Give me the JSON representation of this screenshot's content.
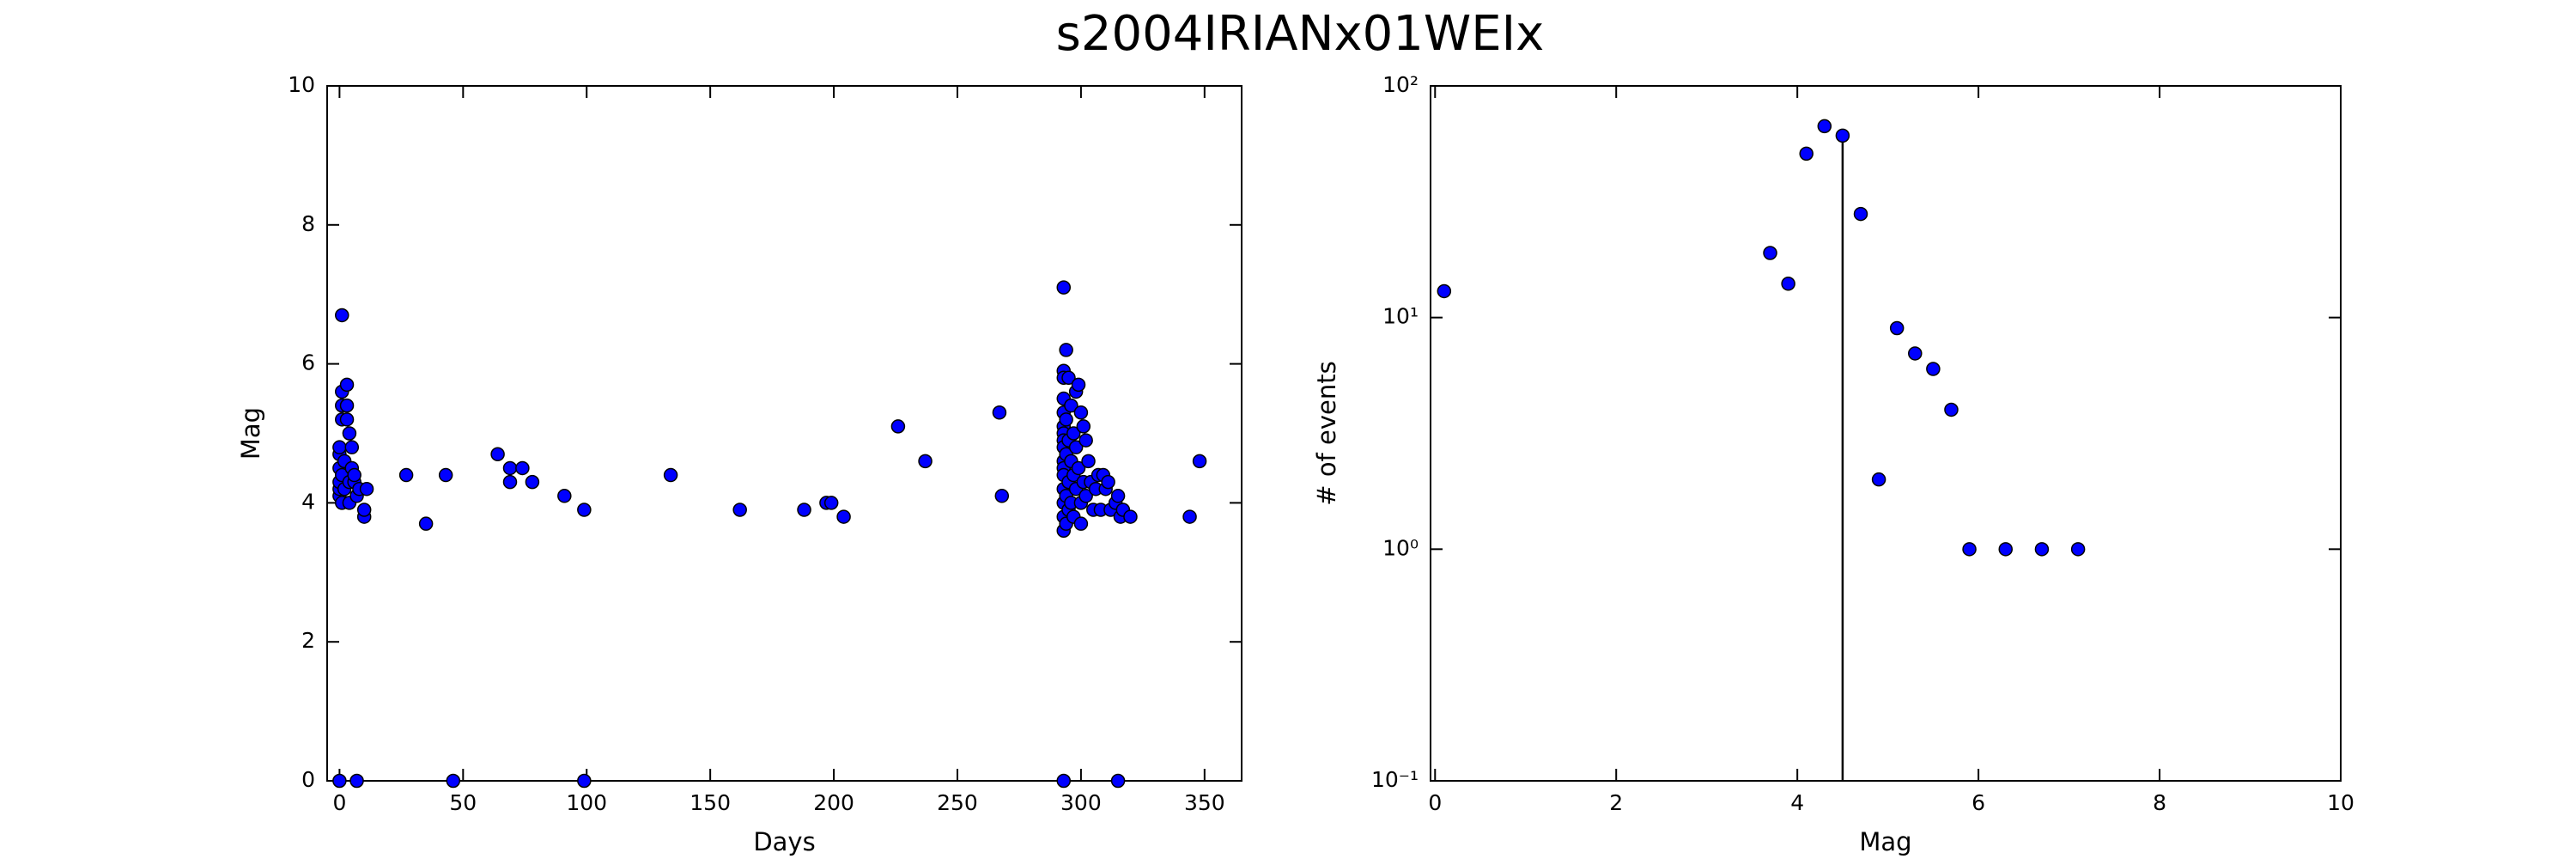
{
  "title": "s2004IRIANx01WEIx",
  "chart_data": [
    {
      "type": "scatter",
      "xlabel": "Days",
      "ylabel": "Mag",
      "xlim": [
        -5,
        365
      ],
      "xticks": [
        0,
        50,
        100,
        150,
        200,
        250,
        300,
        350
      ],
      "ylim": [
        0,
        10
      ],
      "yticks": [
        0,
        2,
        4,
        6,
        8,
        10
      ],
      "log_y": false,
      "color": "#0000ff",
      "x": [
        0,
        0,
        0,
        0,
        0,
        0,
        1,
        1,
        1,
        1,
        1,
        1,
        2,
        2,
        3,
        3,
        3,
        4,
        4,
        4,
        5,
        5,
        6,
        6,
        7,
        8,
        10,
        10,
        11,
        0,
        7,
        27,
        35,
        43,
        46,
        64,
        69,
        69,
        74,
        78,
        91,
        99,
        99,
        134,
        162,
        188,
        197,
        199,
        204,
        226,
        237,
        267,
        268,
        293,
        293,
        293,
        293,
        293,
        293,
        293,
        293,
        293,
        293,
        293,
        293,
        293,
        293,
        293,
        293,
        293,
        294,
        294,
        294,
        294,
        294,
        295,
        295,
        295,
        295,
        296,
        296,
        296,
        297,
        297,
        297,
        298,
        298,
        298,
        299,
        299,
        300,
        300,
        300,
        301,
        301,
        302,
        302,
        303,
        304,
        305,
        306,
        307,
        308,
        309,
        310,
        311,
        312,
        314,
        315,
        316,
        317,
        320,
        315,
        344,
        348
      ],
      "values": [
        4.1,
        4.2,
        4.3,
        4.5,
        4.7,
        4.8,
        6.7,
        5.6,
        5.4,
        5.2,
        4.4,
        4.0,
        4.6,
        4.2,
        5.4,
        5.2,
        5.7,
        5.0,
        4.0,
        4.3,
        4.8,
        4.5,
        4.3,
        4.4,
        4.1,
        4.2,
        3.8,
        3.9,
        4.2,
        0,
        0,
        4.4,
        3.7,
        4.4,
        0,
        4.7,
        4.5,
        4.3,
        4.5,
        4.3,
        4.1,
        3.9,
        0,
        4.4,
        3.9,
        3.9,
        4.0,
        4.0,
        3.8,
        5.1,
        4.6,
        5.3,
        4.1,
        7.1,
        0,
        5.9,
        5.8,
        5.5,
        5.3,
        5.1,
        5.0,
        4.9,
        4.8,
        4.6,
        4.5,
        4.4,
        4.2,
        4.0,
        3.8,
        3.6,
        6.2,
        5.2,
        4.7,
        4.1,
        3.7,
        5.8,
        4.9,
        4.3,
        3.9,
        5.4,
        4.6,
        4.0,
        5.0,
        4.4,
        3.8,
        5.6,
        4.8,
        4.2,
        5.7,
        4.5,
        5.3,
        4.0,
        3.7,
        5.1,
        4.3,
        4.9,
        4.1,
        4.6,
        4.3,
        3.9,
        4.2,
        4.4,
        3.9,
        4.4,
        4.2,
        4.3,
        3.9,
        4.0,
        4.1,
        3.8,
        3.9,
        3.8,
        0,
        3.8,
        4.6
      ]
    },
    {
      "type": "scatter",
      "xlabel": "Mag",
      "ylabel": "# of events",
      "xlim": [
        -0.05,
        10
      ],
      "xticks": [
        0,
        2,
        4,
        6,
        8,
        10
      ],
      "ylim": [
        0.1,
        100
      ],
      "yticks": [
        {
          "value": 0.1,
          "label": "10⁻¹"
        },
        {
          "value": 1,
          "label": "10⁰"
        },
        {
          "value": 10,
          "label": "10¹"
        },
        {
          "value": 100,
          "label": "10²"
        }
      ],
      "log_y": true,
      "color": "#0000ff",
      "x": [
        0.1,
        3.7,
        3.9,
        4.1,
        4.3,
        4.5,
        4.7,
        4.9,
        5.1,
        5.3,
        5.5,
        5.7,
        5.9,
        6.3,
        6.7,
        7.1
      ],
      "values": [
        13,
        19,
        14,
        51,
        67,
        61,
        28,
        2,
        9,
        7,
        6,
        4,
        1,
        1,
        1,
        1
      ],
      "vline": {
        "x": 4.5,
        "top": 61
      }
    }
  ]
}
